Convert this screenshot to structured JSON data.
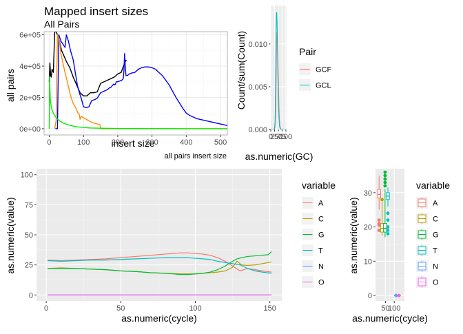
{
  "chart_data": [
    {
      "id": "insert",
      "type": "line",
      "title": "Mapped insert sizes",
      "subtitle": "All Pairs",
      "xlabel": "insert size",
      "ylabel": "all pairs",
      "caption": "all pairs insert size",
      "xlim": [
        -15,
        520
      ],
      "ylim": [
        -40000,
        620000
      ],
      "xticks": [
        0,
        100,
        200,
        300,
        400,
        500
      ],
      "yticks": [
        0,
        200000,
        400000,
        600000
      ],
      "ytick_labels": [
        "0e+00",
        "2e+05",
        "4e+05",
        "6e+05"
      ],
      "grid": true,
      "theme": "white",
      "series": [
        {
          "color": "#000000",
          "x": [
            0,
            2,
            4,
            6,
            8,
            12,
            16,
            20,
            24,
            30,
            36,
            42,
            50,
            60,
            70,
            80,
            90,
            100,
            110,
            120,
            130,
            140,
            150,
            160,
            170,
            180,
            190,
            200,
            210,
            215,
            220,
            225
          ],
          "y": [
            300000,
            420000,
            340000,
            330000,
            380000,
            360000,
            620000,
            620000,
            600000,
            560000,
            500000,
            470000,
            430000,
            390000,
            330000,
            280000,
            230000,
            210000,
            210000,
            230000,
            230000,
            235000,
            290000,
            300000,
            310000,
            320000,
            330000,
            350000,
            360000,
            390000,
            420000,
            440000
          ]
        },
        {
          "color": "#0000ff",
          "x": [
            18,
            24,
            28,
            34,
            40,
            46,
            50,
            56,
            62,
            70,
            76,
            82,
            88,
            94,
            100,
            108,
            116,
            124,
            132,
            140,
            150,
            160,
            170,
            175,
            180,
            184,
            188,
            192,
            196,
            200,
            206,
            212,
            216,
            218,
            220,
            222,
            224,
            228,
            234,
            240,
            250,
            260,
            270,
            280,
            290,
            300,
            310,
            320,
            330,
            340,
            350,
            360,
            370,
            380,
            390,
            400,
            410,
            420,
            430,
            440,
            450,
            460,
            470,
            480,
            490,
            500,
            510,
            520
          ],
          "y": [
            0,
            0,
            600000,
            560000,
            540000,
            520000,
            600000,
            560000,
            500000,
            440000,
            360000,
            280000,
            230000,
            190000,
            140000,
            135000,
            140000,
            180000,
            185000,
            195000,
            230000,
            240000,
            250000,
            260000,
            265000,
            275000,
            285000,
            280000,
            300000,
            300000,
            305000,
            310000,
            320000,
            370000,
            480000,
            400000,
            340000,
            340000,
            350000,
            355000,
            360000,
            380000,
            390000,
            395000,
            395000,
            390000,
            380000,
            360000,
            340000,
            310000,
            280000,
            240000,
            200000,
            165000,
            130000,
            100000,
            85000,
            75000,
            65000,
            60000,
            55000,
            50000,
            45000,
            40000,
            35000,
            30000,
            25000,
            20000
          ]
        },
        {
          "color": "#ff8c00",
          "x": [
            16,
            20,
            24,
            28,
            30,
            34,
            40,
            46,
            54,
            60,
            64,
            70,
            76,
            80,
            84,
            88,
            90,
            94,
            96,
            100,
            104,
            108,
            112,
            116,
            120,
            124,
            128,
            132,
            136,
            140,
            144,
            148,
            150,
            152,
            160,
            200,
            260,
            320,
            400,
            520
          ],
          "y": [
            0,
            50000,
            600000,
            580000,
            560000,
            480000,
            420000,
            360000,
            290000,
            230000,
            200000,
            160000,
            140000,
            120000,
            100000,
            90000,
            60000,
            80000,
            75000,
            70000,
            65000,
            60000,
            55000,
            50000,
            45000,
            42000,
            38000,
            35000,
            33000,
            30000,
            28000,
            26000,
            0,
            0,
            0,
            0,
            0,
            0,
            0,
            0
          ]
        },
        {
          "color": "#00ee00",
          "x": [
            0,
            1,
            2,
            3,
            4,
            6,
            8,
            12,
            16,
            20,
            24,
            28,
            32,
            36,
            40,
            48,
            56,
            64,
            72,
            80,
            90,
            100,
            120,
            150,
            200,
            250,
            300,
            400,
            520
          ],
          "y": [
            0,
            330000,
            260000,
            190000,
            170000,
            140000,
            120000,
            100000,
            85000,
            72000,
            62000,
            55000,
            48000,
            42000,
            37000,
            30000,
            24000,
            20000,
            16000,
            13000,
            10000,
            8000,
            5000,
            3000,
            1500,
            800,
            400,
            100,
            0
          ]
        }
      ]
    },
    {
      "id": "gc",
      "type": "line",
      "xlabel": "as.numeric(GC)",
      "ylabel": "Count/sum(Count)",
      "xlim": [
        0,
        105
      ],
      "ylim": [
        0,
        0.0145
      ],
      "xticks": [
        0,
        25,
        50,
        75,
        100
      ],
      "xtick_labels": [
        "0",
        "25",
        "50",
        "75",
        "100"
      ],
      "yticks": [
        0,
        0.005,
        0.01
      ],
      "ytick_labels": [
        "0.000",
        "0.005",
        "0.010"
      ],
      "grid": true,
      "legend": {
        "title": "Pair",
        "position": "right",
        "items": [
          {
            "label": "GCF",
            "color": "#F8766D"
          },
          {
            "label": "GCL",
            "color": "#00BFC4"
          }
        ]
      },
      "series": [
        {
          "name": "GCF",
          "color": "#F8766D",
          "x": [
            0,
            10,
            20,
            24,
            28,
            32,
            34,
            36,
            38,
            40,
            42,
            44,
            46,
            48,
            50,
            52,
            54,
            56,
            58,
            60,
            62,
            66,
            72,
            80,
            100
          ],
          "y": [
            0,
            0,
            0,
            5e-05,
            0.0003,
            0.0015,
            0.0035,
            0.0065,
            0.0095,
            0.0112,
            0.0114,
            0.0108,
            0.0095,
            0.0078,
            0.006,
            0.0042,
            0.0028,
            0.0017,
            0.001,
            0.0006,
            0.0003,
            0.0001,
            0,
            0,
            0
          ]
        },
        {
          "name": "GCL",
          "color": "#00BFC4",
          "x": [
            0,
            10,
            20,
            24,
            28,
            30,
            32,
            34,
            36,
            38,
            40,
            42,
            44,
            46,
            48,
            50,
            52,
            54,
            56,
            58,
            62,
            66,
            72,
            80,
            100
          ],
          "y": [
            0,
            0,
            0,
            0.0001,
            0.0008,
            0.0025,
            0.005,
            0.0085,
            0.0118,
            0.0136,
            0.0137,
            0.0124,
            0.0102,
            0.0078,
            0.0056,
            0.0038,
            0.0024,
            0.0014,
            0.0008,
            0.0004,
            0.0001,
            0,
            0,
            0,
            0
          ]
        }
      ]
    },
    {
      "id": "cycle",
      "type": "line",
      "xlabel": "as.numeric(cycle)",
      "ylabel": "as.numeric(value)",
      "xlim": [
        -6.5,
        158
      ],
      "ylim": [
        -5,
        105
      ],
      "xticks": [
        0,
        50,
        100,
        150
      ],
      "yticks": [
        0,
        25,
        50,
        75,
        100
      ],
      "grid": true,
      "legend": {
        "title": "variable",
        "position": "right",
        "items": [
          {
            "label": "A",
            "color": "#F8766D"
          },
          {
            "label": "C",
            "color": "#B79F00"
          },
          {
            "label": "G",
            "color": "#00BA38"
          },
          {
            "label": "T",
            "color": "#00BFC4"
          },
          {
            "label": "N",
            "color": "#619CFF"
          },
          {
            "label": "O",
            "color": "#F564E3"
          }
        ]
      },
      "series": [
        {
          "name": "A",
          "color": "#F8766D",
          "x": [
            1,
            10,
            20,
            30,
            40,
            50,
            60,
            70,
            80,
            90,
            95,
            100,
            105,
            110,
            115,
            120,
            125,
            130,
            135,
            140,
            145,
            151
          ],
          "y": [
            29,
            28.5,
            29,
            29.5,
            30,
            31,
            32,
            33,
            34,
            35,
            35,
            34.5,
            34,
            33,
            31,
            28,
            24,
            20,
            22,
            21,
            20,
            19
          ]
        },
        {
          "name": "C",
          "color": "#B79F00",
          "x": [
            1,
            10,
            20,
            30,
            40,
            50,
            60,
            70,
            80,
            90,
            95,
            100,
            105,
            110,
            115,
            120,
            125,
            128,
            131,
            135,
            140,
            145,
            151
          ],
          "y": [
            22,
            22.5,
            22,
            21.5,
            21,
            20,
            19.5,
            18.5,
            18,
            17.5,
            17.5,
            17.5,
            18,
            18.5,
            19,
            20,
            23,
            28,
            25,
            24.5,
            25,
            26,
            27.5
          ]
        },
        {
          "name": "G",
          "color": "#00BA38",
          "x": [
            1,
            10,
            20,
            30,
            40,
            50,
            60,
            70,
            80,
            90,
            95,
            100,
            105,
            110,
            115,
            120,
            125,
            128,
            131,
            135,
            140,
            145,
            149,
            151
          ],
          "y": [
            22,
            22,
            22,
            21.5,
            21,
            20,
            19.5,
            18.5,
            18,
            17,
            17,
            17.5,
            18,
            19,
            21,
            24,
            28,
            30,
            31,
            32,
            32.5,
            33,
            33.5,
            36
          ]
        },
        {
          "name": "T",
          "color": "#00BFC4",
          "x": [
            1,
            10,
            20,
            30,
            40,
            50,
            60,
            70,
            80,
            90,
            95,
            100,
            105,
            110,
            115,
            120,
            125,
            130,
            135,
            140,
            145,
            151
          ],
          "y": [
            28.5,
            28,
            28.5,
            29,
            29,
            29.5,
            30,
            30.5,
            31,
            31,
            31,
            30.5,
            30,
            29.5,
            28,
            27,
            26,
            25,
            22,
            20,
            19,
            18
          ]
        },
        {
          "name": "N",
          "color": "#619CFF",
          "x": [
            1,
            151
          ],
          "y": [
            0.05,
            0.05
          ]
        },
        {
          "name": "O",
          "color": "#F564E3",
          "x": [
            1,
            151
          ],
          "y": [
            0,
            0
          ]
        }
      ]
    },
    {
      "id": "box",
      "type": "box",
      "xlabel": "as.numeric(cycle)",
      "ylabel": "as.numeric(value)",
      "xlim": [
        -6.5,
        158
      ],
      "ylim": [
        -1.6,
        37
      ],
      "xticks": [
        50,
        100
      ],
      "yticks": [
        0,
        10,
        20,
        30
      ],
      "grid": true,
      "legend": {
        "title": "variable",
        "position": "right",
        "items": [
          {
            "label": "A",
            "color": "#F8766D"
          },
          {
            "label": "C",
            "color": "#B79F00"
          },
          {
            "label": "G",
            "color": "#00BA38"
          },
          {
            "label": "T",
            "color": "#00BFC4"
          },
          {
            "label": "N",
            "color": "#619CFF"
          },
          {
            "label": "O",
            "color": "#F564E3"
          }
        ]
      },
      "boxes": [
        {
          "name": "A",
          "color": "#F8766D",
          "x": 14,
          "q1": 28.5,
          "median": 29.5,
          "q3": 31,
          "lo": 25,
          "hi": 35,
          "outliers": [
            22,
            21,
            20.5,
            19
          ]
        },
        {
          "name": "C",
          "color": "#B79F00",
          "x": 31,
          "q1": 18.5,
          "median": 19.5,
          "q3": 21,
          "lo": 17.5,
          "hi": 27.5,
          "outliers": [
            28
          ]
        },
        {
          "name": "G",
          "color": "#00BA38",
          "x": 48,
          "q1": 18.5,
          "median": 19.5,
          "q3": 21,
          "lo": 17,
          "hi": 31,
          "outliers": [
            32,
            33,
            34,
            35,
            36
          ]
        },
        {
          "name": "T",
          "color": "#00BFC4",
          "x": 64,
          "q1": 28,
          "median": 29,
          "q3": 30,
          "lo": 26,
          "hi": 31.5,
          "outliers": [
            19,
            20,
            22,
            24,
            18
          ]
        },
        {
          "name": "N",
          "color": "#619CFF",
          "x": 110,
          "q1": 0,
          "median": 0,
          "q3": 0.05,
          "lo": 0,
          "hi": 0.05,
          "outliers": [
            0
          ]
        },
        {
          "name": "O",
          "color": "#F564E3",
          "x": 127,
          "q1": 0,
          "median": 0,
          "q3": 0,
          "lo": 0,
          "hi": 0,
          "outliers": [
            0
          ]
        }
      ]
    }
  ]
}
